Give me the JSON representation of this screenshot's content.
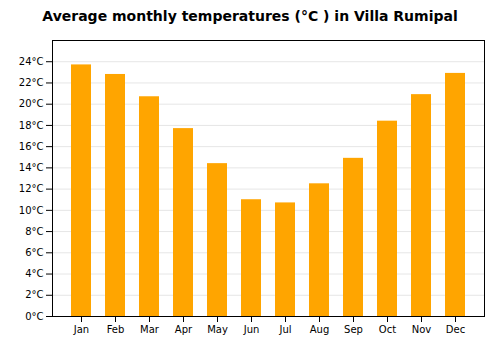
{
  "chart_data": {
    "type": "bar",
    "title": "Average monthly temperatures (°C ) in Villa Rumipal",
    "categories": [
      "Jan",
      "Feb",
      "Mar",
      "Apr",
      "May",
      "Jun",
      "Jul",
      "Aug",
      "Sep",
      "Oct",
      "Nov",
      "Dec"
    ],
    "values": [
      23.7,
      22.8,
      20.7,
      17.7,
      14.4,
      11.0,
      10.7,
      12.5,
      14.9,
      18.4,
      20.9,
      22.9
    ],
    "color": "#FFA500",
    "ylim": [
      0,
      26
    ],
    "yticks": [
      {
        "value": 0,
        "label": "0°C"
      },
      {
        "value": 2,
        "label": "2°C"
      },
      {
        "value": 4,
        "label": "4°C"
      },
      {
        "value": 6,
        "label": "6°C"
      },
      {
        "value": 8,
        "label": "8°C"
      },
      {
        "value": 10,
        "label": "10°C"
      },
      {
        "value": 12,
        "label": "12°C"
      },
      {
        "value": 14,
        "label": "14°C"
      },
      {
        "value": 16,
        "label": "16°C"
      },
      {
        "value": 18,
        "label": "18°C"
      },
      {
        "value": 20,
        "label": "20°C"
      },
      {
        "value": 22,
        "label": "22°C"
      },
      {
        "value": 24,
        "label": "24°C"
      }
    ],
    "grid": true
  }
}
